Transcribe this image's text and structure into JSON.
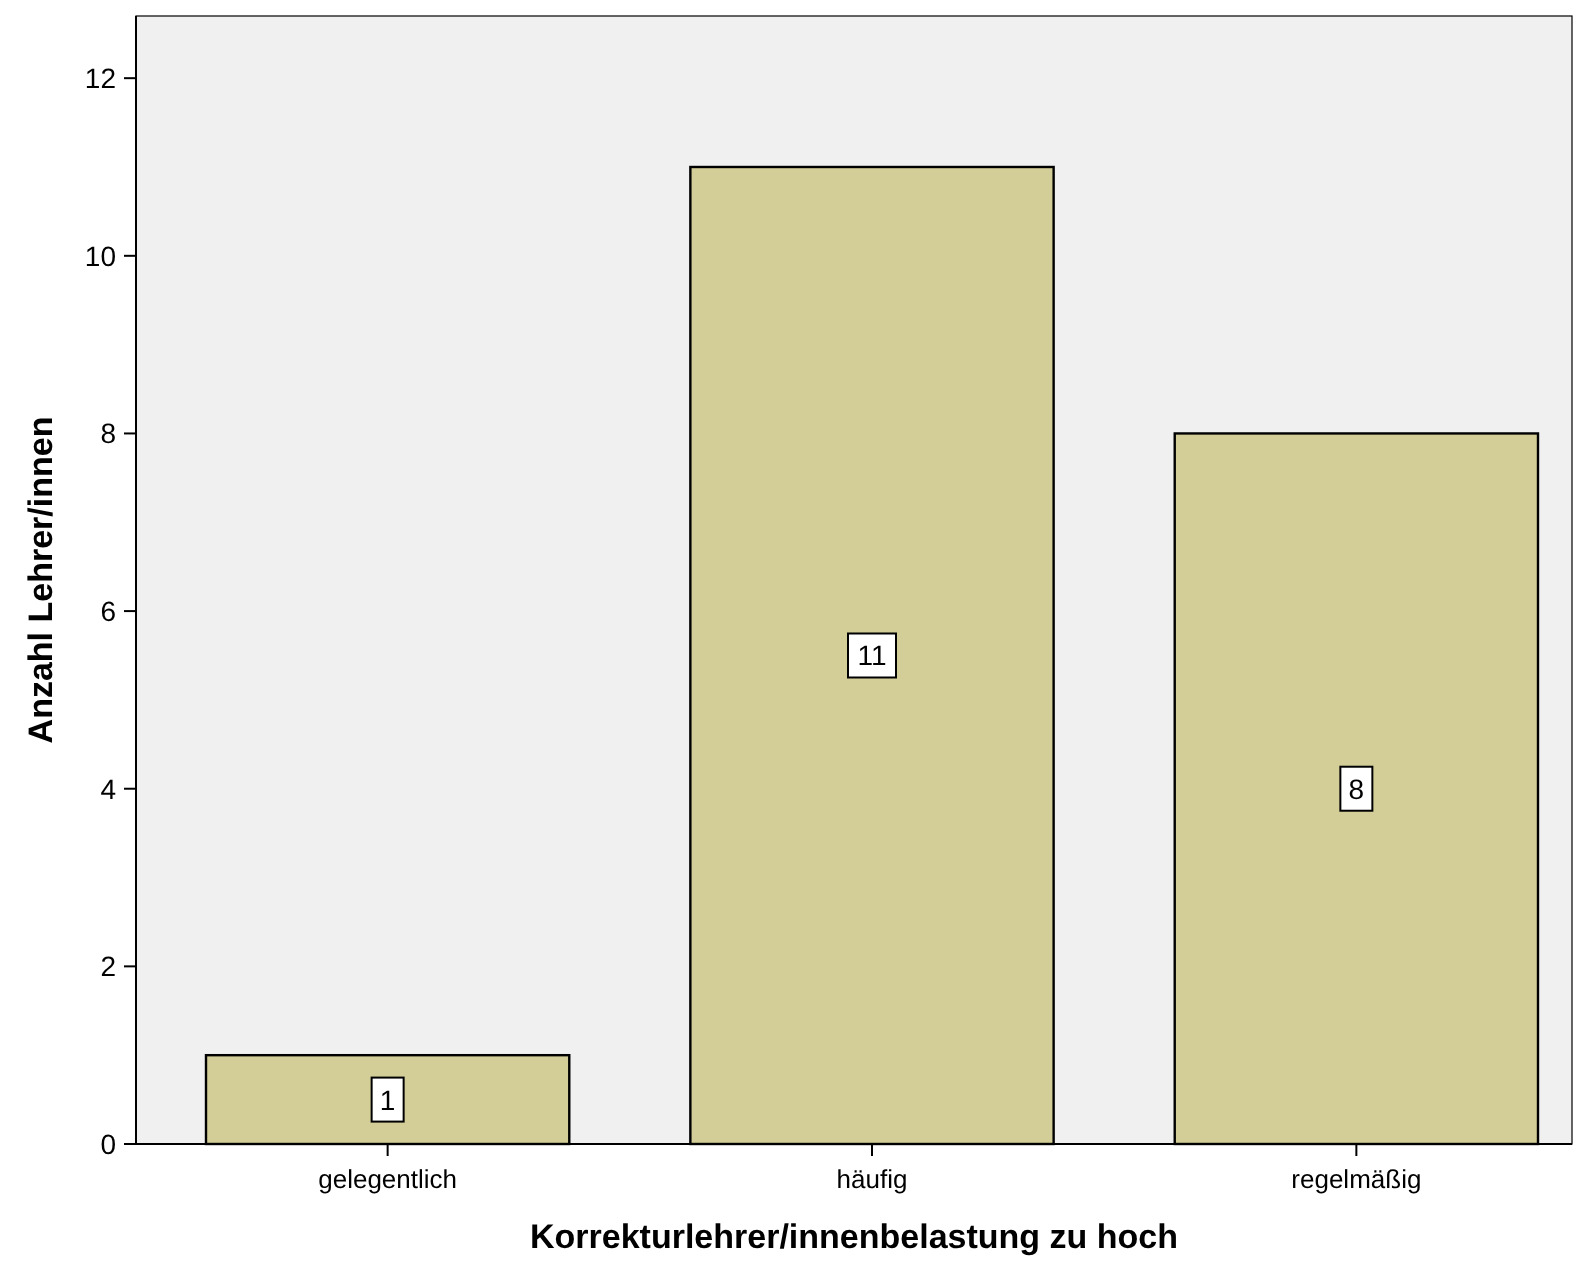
{
  "chart_data": {
    "type": "bar",
    "xlabel": "Korrekturlehrer/innenbelastung zu hoch",
    "ylabel": "Anzahl Lehrer/innen",
    "categories": [
      "gelegentlich",
      "häufig",
      "regelmäßig"
    ],
    "values": [
      1,
      11,
      8
    ],
    "color": "#d3ce97",
    "ylim": [
      0,
      12.7
    ],
    "yticks": [
      0,
      2,
      4,
      6,
      8,
      10,
      12
    ],
    "data_labels": true
  }
}
